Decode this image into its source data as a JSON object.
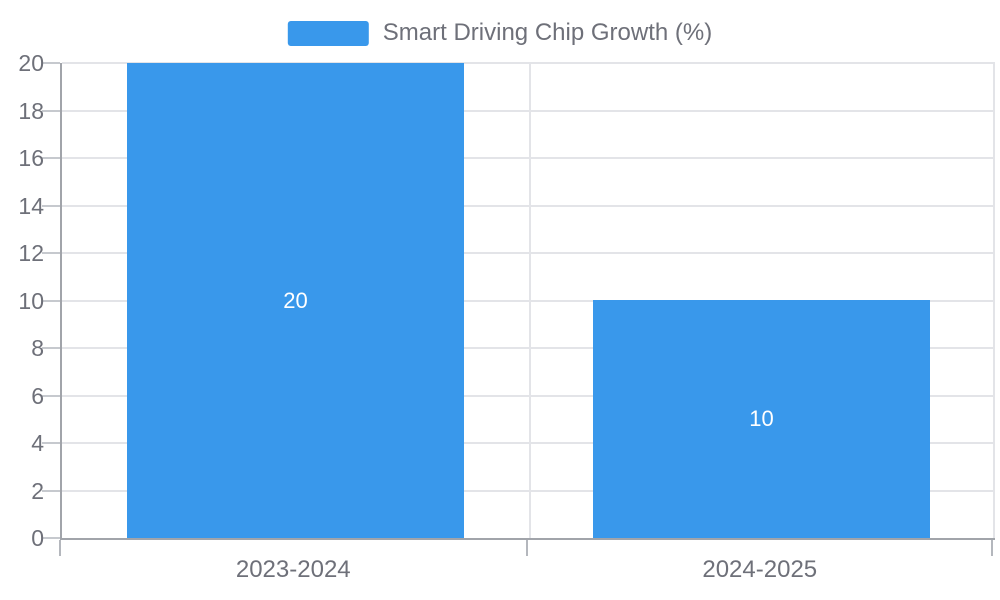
{
  "legend": {
    "label": "Smart Driving Chip Growth (%)"
  },
  "colors": {
    "bar": "#3998EB",
    "axis": "#A1A4AA",
    "grid": "#E3E4E8",
    "text": "#6E7079",
    "bar_label": "#FFFFFF",
    "background": "#FFFFFF"
  },
  "chart_data": {
    "type": "bar",
    "categories": [
      "2023-2024",
      "2024-2025"
    ],
    "values": [
      20,
      10
    ],
    "data_labels": [
      "20",
      "10"
    ],
    "title": "",
    "xlabel": "",
    "ylabel": "",
    "ylim": [
      0,
      20
    ],
    "ytick_step": 2,
    "yticks": [
      0,
      2,
      4,
      6,
      8,
      10,
      12,
      14,
      16,
      18,
      20
    ],
    "grid": true,
    "legend_entries": [
      "Smart Driving Chip Growth (%)"
    ],
    "legend_position": "top-center",
    "bar_label_position": "inside-center"
  }
}
